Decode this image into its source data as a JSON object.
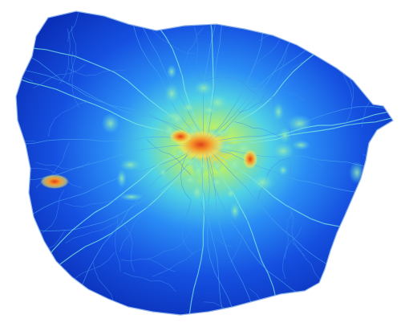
{
  "figure": {
    "background": "#ffffff",
    "boundary_color": "#8fb3e8",
    "colormap": [
      "#00008f",
      "#0a2fc4",
      "#1c5bea",
      "#2f8af5",
      "#55c7f2",
      "#8ff0cf",
      "#c8f58f",
      "#f5e35a",
      "#f59a2a",
      "#e0401a",
      "#8f0000"
    ]
  }
}
